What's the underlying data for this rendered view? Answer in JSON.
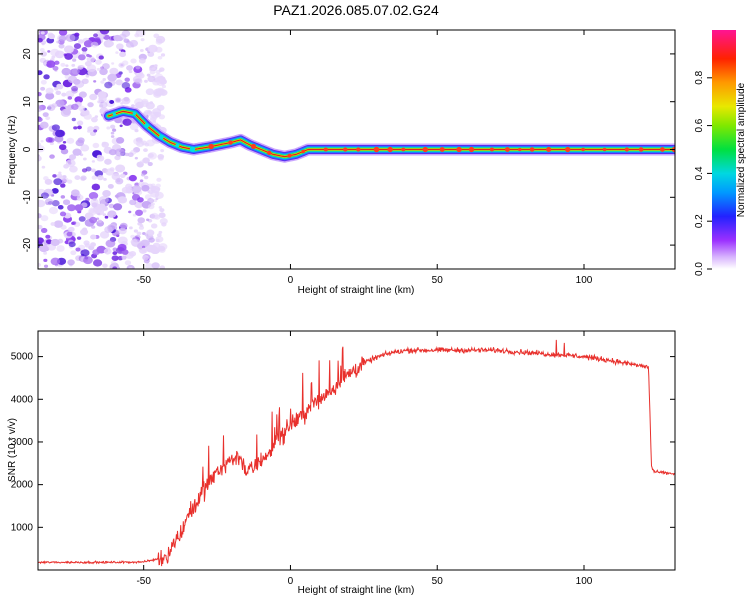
{
  "figure_title": "PAZ1.2026.085.07.02.G24",
  "chart_data": [
    {
      "type": "heatmap",
      "title": "PAZ1.2026.085.07.02.G24",
      "xlabel": "Height of straight line (km)",
      "ylabel": "Frequency (Hz)",
      "xlim": [
        -86,
        131
      ],
      "ylim": [
        -25,
        25
      ],
      "xticks": [
        -50,
        0,
        50,
        100
      ],
      "yticks": [
        -20,
        -10,
        0,
        10,
        20
      ],
      "colorbar": {
        "label": "Normalized spectral amplitude",
        "range": [
          0,
          1
        ],
        "ticks": [
          0.0,
          0.2,
          0.4,
          0.6,
          0.8
        ],
        "tick_labels": [
          "0.0",
          "0.2",
          "0.4",
          "0.6",
          "0.8"
        ]
      },
      "ridge": {
        "x_km": [
          -62,
          -57,
          -53,
          -49,
          -45,
          -41,
          -37,
          -33,
          -28,
          -24,
          -20,
          -17,
          -14,
          -10,
          -6,
          -2,
          2,
          6,
          12,
          20,
          30,
          40,
          50,
          60,
          80,
          100,
          120,
          131
        ],
        "freq_hz": [
          7,
          8,
          7.5,
          5,
          3,
          1.5,
          0.5,
          0,
          0.5,
          1,
          1.5,
          2,
          1,
          0,
          -1,
          -1.5,
          -1,
          0,
          0,
          0,
          0,
          0,
          0,
          0,
          0,
          0,
          0,
          0
        ]
      },
      "noise_region_km": [
        -86,
        -43
      ]
    },
    {
      "type": "line",
      "title": "",
      "xlabel": "Height of straight line (km)",
      "ylabel": "SNR (10 * v/v)",
      "xlim": [
        -86,
        131
      ],
      "ylim": [
        0,
        5600
      ],
      "xticks": [
        -50,
        0,
        50,
        100
      ],
      "yticks": [
        1000,
        2000,
        3000,
        4000,
        5000
      ],
      "series": [
        {
          "name": "SNR",
          "color": "#e8302c",
          "x": [
            -86,
            -60,
            -50,
            -45,
            -42,
            -40,
            -37,
            -35,
            -32,
            -30,
            -27,
            -25,
            -22,
            -20,
            -17,
            -15,
            -12,
            -10,
            -7,
            -5,
            -2,
            0,
            5,
            10,
            15,
            20,
            25,
            30,
            35,
            40,
            45,
            50,
            60,
            70,
            80,
            90,
            100,
            110,
            118,
            122,
            123,
            124,
            131
          ],
          "y": [
            180,
            180,
            190,
            260,
            350,
            600,
            900,
            1300,
            1550,
            1800,
            2100,
            2350,
            2500,
            2600,
            2650,
            2300,
            2400,
            2600,
            2750,
            3000,
            3200,
            3400,
            3700,
            4000,
            4300,
            4600,
            4850,
            5000,
            5100,
            5150,
            5150,
            5150,
            5150,
            5150,
            5100,
            5050,
            5000,
            4900,
            4800,
            4750,
            2400,
            2300,
            2250
          ]
        }
      ]
    }
  ]
}
